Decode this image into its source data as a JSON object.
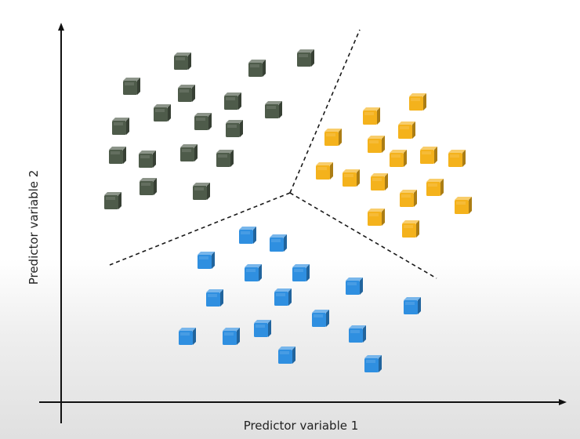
{
  "chart_data": {
    "type": "scatter",
    "xlabel": "Predictor variable 1",
    "ylabel": "Predictor variable 2",
    "axis_ticks": false,
    "grid": false,
    "colors": {
      "green": "#4e5b4a",
      "yellow": "#f4b21c",
      "blue": "#2f8fe0"
    },
    "marker": "cube",
    "series": [
      {
        "color": "green",
        "points": [
          [
            231,
            80
          ],
          [
            388,
            76
          ],
          [
            326,
            89
          ],
          [
            166,
            112
          ],
          [
            236,
            121
          ],
          [
            205,
            146
          ],
          [
            295,
            131
          ],
          [
            347,
            142
          ],
          [
            152,
            163
          ],
          [
            257,
            157
          ],
          [
            297,
            166
          ],
          [
            148,
            200
          ],
          [
            186,
            205
          ],
          [
            239,
            197
          ],
          [
            285,
            204
          ],
          [
            187,
            240
          ],
          [
            255,
            246
          ],
          [
            142,
            258
          ]
        ]
      },
      {
        "color": "yellow",
        "points": [
          [
            531,
            132
          ],
          [
            472,
            150
          ],
          [
            517,
            168
          ],
          [
            423,
            177
          ],
          [
            478,
            186
          ],
          [
            506,
            204
          ],
          [
            545,
            200
          ],
          [
            581,
            204
          ],
          [
            412,
            220
          ],
          [
            446,
            229
          ],
          [
            482,
            234
          ],
          [
            553,
            241
          ],
          [
            519,
            255
          ],
          [
            589,
            264
          ],
          [
            478,
            279
          ],
          [
            522,
            294
          ]
        ]
      },
      {
        "color": "blue",
        "points": [
          [
            314,
            302
          ],
          [
            353,
            312
          ],
          [
            261,
            334
          ],
          [
            321,
            350
          ],
          [
            382,
            350
          ],
          [
            450,
            367
          ],
          [
            272,
            382
          ],
          [
            359,
            381
          ],
          [
            524,
            392
          ],
          [
            407,
            408
          ],
          [
            333,
            421
          ],
          [
            454,
            428
          ],
          [
            237,
            431
          ],
          [
            293,
            431
          ],
          [
            364,
            455
          ],
          [
            474,
            466
          ]
        ]
      }
    ],
    "boundaries": [
      [
        [
          370,
          246
        ],
        [
          459,
          38
        ]
      ],
      [
        [
          370,
          246
        ],
        [
          140,
          338
        ]
      ],
      [
        [
          370,
          246
        ],
        [
          557,
          355
        ]
      ]
    ]
  }
}
